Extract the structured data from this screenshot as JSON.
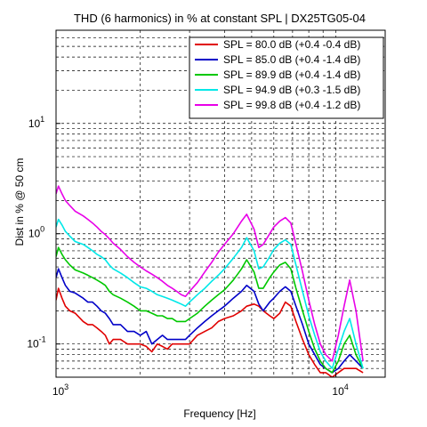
{
  "chart_data": {
    "type": "line",
    "title": "THD (6 harmonics) in % at constant SPL | DX25TG05-04",
    "xlabel": "Frequency [Hz]",
    "ylabel": "Dist in % @ 50 cm",
    "xscale": "log",
    "yscale": "log",
    "xlim": [
      1000,
      15000
    ],
    "ylim": [
      0.05,
      70
    ],
    "grid": true,
    "legend_position": "top-right",
    "x_ticks": [
      {
        "value": 1000,
        "base": "10",
        "exp": "3"
      },
      {
        "value": 10000,
        "base": "10",
        "exp": "4"
      }
    ],
    "y_ticks": [
      {
        "value": 0.1,
        "label": "10",
        "exp": "-1"
      },
      {
        "value": 1,
        "label": "10",
        "exp": "0"
      },
      {
        "value": 10,
        "label": "10",
        "exp": "1"
      }
    ],
    "series": [
      {
        "name": "SPL = 80.0 dB (+0.4 -0.4 dB)",
        "color": "#e00000",
        "points": [
          [
            1000,
            0.25
          ],
          [
            1020,
            0.32
          ],
          [
            1050,
            0.26
          ],
          [
            1080,
            0.22
          ],
          [
            1120,
            0.2
          ],
          [
            1170,
            0.19
          ],
          [
            1250,
            0.16
          ],
          [
            1300,
            0.15
          ],
          [
            1350,
            0.15
          ],
          [
            1400,
            0.14
          ],
          [
            1450,
            0.13
          ],
          [
            1500,
            0.12
          ],
          [
            1550,
            0.1
          ],
          [
            1600,
            0.11
          ],
          [
            1700,
            0.11
          ],
          [
            1800,
            0.1
          ],
          [
            1900,
            0.1
          ],
          [
            2000,
            0.1
          ],
          [
            2100,
            0.095
          ],
          [
            2200,
            0.085
          ],
          [
            2300,
            0.1
          ],
          [
            2400,
            0.095
          ],
          [
            2500,
            0.09
          ],
          [
            2600,
            0.1
          ],
          [
            2700,
            0.1
          ],
          [
            2800,
            0.1
          ],
          [
            2900,
            0.1
          ],
          [
            3000,
            0.1
          ],
          [
            3200,
            0.12
          ],
          [
            3400,
            0.13
          ],
          [
            3600,
            0.14
          ],
          [
            3800,
            0.16
          ],
          [
            4000,
            0.17
          ],
          [
            4300,
            0.18
          ],
          [
            4600,
            0.2
          ],
          [
            4800,
            0.22
          ],
          [
            5100,
            0.23
          ],
          [
            5300,
            0.22
          ],
          [
            5500,
            0.2
          ],
          [
            5800,
            0.18
          ],
          [
            6000,
            0.17
          ],
          [
            6300,
            0.19
          ],
          [
            6600,
            0.24
          ],
          [
            6900,
            0.22
          ],
          [
            7200,
            0.16
          ],
          [
            7600,
            0.11
          ],
          [
            8000,
            0.08
          ],
          [
            8400,
            0.065
          ],
          [
            8800,
            0.055
          ],
          [
            9200,
            0.055
          ],
          [
            9700,
            0.05
          ],
          [
            10200,
            0.055
          ],
          [
            10700,
            0.06
          ],
          [
            11200,
            0.06
          ],
          [
            11800,
            0.06
          ],
          [
            12500,
            0.055
          ]
        ]
      },
      {
        "name": "SPL = 85.0 dB (+0.4 -1.4 dB)",
        "color": "#0000c8",
        "points": [
          [
            1000,
            0.4
          ],
          [
            1020,
            0.48
          ],
          [
            1050,
            0.4
          ],
          [
            1080,
            0.34
          ],
          [
            1120,
            0.3
          ],
          [
            1170,
            0.29
          ],
          [
            1250,
            0.26
          ],
          [
            1300,
            0.24
          ],
          [
            1350,
            0.24
          ],
          [
            1400,
            0.22
          ],
          [
            1450,
            0.2
          ],
          [
            1500,
            0.19
          ],
          [
            1550,
            0.17
          ],
          [
            1600,
            0.15
          ],
          [
            1700,
            0.15
          ],
          [
            1800,
            0.13
          ],
          [
            1900,
            0.13
          ],
          [
            2000,
            0.12
          ],
          [
            2100,
            0.13
          ],
          [
            2200,
            0.1
          ],
          [
            2300,
            0.11
          ],
          [
            2400,
            0.12
          ],
          [
            2500,
            0.11
          ],
          [
            2600,
            0.11
          ],
          [
            2700,
            0.11
          ],
          [
            2800,
            0.11
          ],
          [
            2900,
            0.11
          ],
          [
            3000,
            0.12
          ],
          [
            3200,
            0.14
          ],
          [
            3400,
            0.16
          ],
          [
            3600,
            0.18
          ],
          [
            3800,
            0.2
          ],
          [
            4000,
            0.22
          ],
          [
            4300,
            0.26
          ],
          [
            4600,
            0.3
          ],
          [
            4800,
            0.34
          ],
          [
            5100,
            0.3
          ],
          [
            5300,
            0.23
          ],
          [
            5500,
            0.2
          ],
          [
            5800,
            0.24
          ],
          [
            6000,
            0.26
          ],
          [
            6300,
            0.3
          ],
          [
            6600,
            0.33
          ],
          [
            6900,
            0.3
          ],
          [
            7200,
            0.22
          ],
          [
            7600,
            0.15
          ],
          [
            8000,
            0.1
          ],
          [
            8400,
            0.08
          ],
          [
            8800,
            0.065
          ],
          [
            9200,
            0.06
          ],
          [
            9700,
            0.055
          ],
          [
            10200,
            0.06
          ],
          [
            10700,
            0.07
          ],
          [
            11200,
            0.08
          ],
          [
            11800,
            0.07
          ],
          [
            12500,
            0.06
          ]
        ]
      },
      {
        "name": "SPL = 89.9 dB (+0.4 -1.4 dB)",
        "color": "#00c800",
        "points": [
          [
            1000,
            0.62
          ],
          [
            1020,
            0.75
          ],
          [
            1050,
            0.65
          ],
          [
            1080,
            0.58
          ],
          [
            1120,
            0.52
          ],
          [
            1170,
            0.47
          ],
          [
            1250,
            0.44
          ],
          [
            1300,
            0.42
          ],
          [
            1350,
            0.4
          ],
          [
            1400,
            0.38
          ],
          [
            1450,
            0.36
          ],
          [
            1500,
            0.34
          ],
          [
            1550,
            0.3
          ],
          [
            1600,
            0.28
          ],
          [
            1700,
            0.26
          ],
          [
            1800,
            0.24
          ],
          [
            1900,
            0.22
          ],
          [
            2000,
            0.2
          ],
          [
            2100,
            0.2
          ],
          [
            2200,
            0.19
          ],
          [
            2300,
            0.18
          ],
          [
            2400,
            0.18
          ],
          [
            2500,
            0.17
          ],
          [
            2600,
            0.17
          ],
          [
            2700,
            0.16
          ],
          [
            2800,
            0.16
          ],
          [
            2900,
            0.16
          ],
          [
            3000,
            0.17
          ],
          [
            3200,
            0.19
          ],
          [
            3400,
            0.22
          ],
          [
            3600,
            0.25
          ],
          [
            3800,
            0.28
          ],
          [
            4000,
            0.31
          ],
          [
            4300,
            0.38
          ],
          [
            4600,
            0.48
          ],
          [
            4800,
            0.58
          ],
          [
            5100,
            0.45
          ],
          [
            5300,
            0.32
          ],
          [
            5500,
            0.32
          ],
          [
            5800,
            0.4
          ],
          [
            6000,
            0.45
          ],
          [
            6300,
            0.52
          ],
          [
            6600,
            0.55
          ],
          [
            6900,
            0.48
          ],
          [
            7200,
            0.32
          ],
          [
            7600,
            0.2
          ],
          [
            8000,
            0.13
          ],
          [
            8400,
            0.09
          ],
          [
            8800,
            0.07
          ],
          [
            9200,
            0.06
          ],
          [
            9700,
            0.055
          ],
          [
            10200,
            0.07
          ],
          [
            10700,
            0.1
          ],
          [
            11200,
            0.12
          ],
          [
            11800,
            0.08
          ],
          [
            12500,
            0.06
          ]
        ]
      },
      {
        "name": "SPL = 94.9 dB (+0.3 -1.5 dB)",
        "color": "#00e8e8",
        "points": [
          [
            1000,
            1.15
          ],
          [
            1020,
            1.35
          ],
          [
            1050,
            1.2
          ],
          [
            1080,
            1.05
          ],
          [
            1120,
            0.95
          ],
          [
            1170,
            0.85
          ],
          [
            1250,
            0.8
          ],
          [
            1300,
            0.75
          ],
          [
            1350,
            0.7
          ],
          [
            1400,
            0.65
          ],
          [
            1450,
            0.62
          ],
          [
            1500,
            0.58
          ],
          [
            1550,
            0.52
          ],
          [
            1600,
            0.48
          ],
          [
            1700,
            0.44
          ],
          [
            1800,
            0.4
          ],
          [
            1900,
            0.36
          ],
          [
            2000,
            0.33
          ],
          [
            2100,
            0.32
          ],
          [
            2200,
            0.3
          ],
          [
            2300,
            0.28
          ],
          [
            2400,
            0.27
          ],
          [
            2500,
            0.26
          ],
          [
            2600,
            0.25
          ],
          [
            2700,
            0.24
          ],
          [
            2800,
            0.23
          ],
          [
            2900,
            0.22
          ],
          [
            3000,
            0.24
          ],
          [
            3200,
            0.28
          ],
          [
            3400,
            0.32
          ],
          [
            3600,
            0.37
          ],
          [
            3800,
            0.42
          ],
          [
            4000,
            0.48
          ],
          [
            4300,
            0.6
          ],
          [
            4600,
            0.75
          ],
          [
            4800,
            0.92
          ],
          [
            5100,
            0.7
          ],
          [
            5300,
            0.48
          ],
          [
            5500,
            0.5
          ],
          [
            5800,
            0.62
          ],
          [
            6000,
            0.72
          ],
          [
            6300,
            0.82
          ],
          [
            6600,
            0.88
          ],
          [
            6900,
            0.8
          ],
          [
            7200,
            0.52
          ],
          [
            7600,
            0.3
          ],
          [
            8000,
            0.18
          ],
          [
            8400,
            0.12
          ],
          [
            8800,
            0.085
          ],
          [
            9200,
            0.07
          ],
          [
            9700,
            0.06
          ],
          [
            10200,
            0.09
          ],
          [
            10700,
            0.13
          ],
          [
            11200,
            0.17
          ],
          [
            11800,
            0.1
          ],
          [
            12500,
            0.06
          ]
        ]
      },
      {
        "name": "SPL = 99.8 dB (+0.4 -1.2 dB)",
        "color": "#e800e8",
        "points": [
          [
            1000,
            2.3
          ],
          [
            1020,
            2.7
          ],
          [
            1050,
            2.3
          ],
          [
            1080,
            2.0
          ],
          [
            1120,
            1.8
          ],
          [
            1170,
            1.6
          ],
          [
            1250,
            1.45
          ],
          [
            1300,
            1.35
          ],
          [
            1350,
            1.25
          ],
          [
            1400,
            1.15
          ],
          [
            1450,
            1.05
          ],
          [
            1500,
            0.98
          ],
          [
            1550,
            0.9
          ],
          [
            1600,
            0.82
          ],
          [
            1700,
            0.72
          ],
          [
            1800,
            0.62
          ],
          [
            1900,
            0.55
          ],
          [
            2000,
            0.5
          ],
          [
            2100,
            0.46
          ],
          [
            2200,
            0.43
          ],
          [
            2300,
            0.4
          ],
          [
            2400,
            0.37
          ],
          [
            2500,
            0.34
          ],
          [
            2600,
            0.32
          ],
          [
            2700,
            0.3
          ],
          [
            2800,
            0.28
          ],
          [
            2900,
            0.27
          ],
          [
            3000,
            0.3
          ],
          [
            3200,
            0.36
          ],
          [
            3400,
            0.45
          ],
          [
            3600,
            0.55
          ],
          [
            3800,
            0.68
          ],
          [
            4000,
            0.8
          ],
          [
            4300,
            1.0
          ],
          [
            4600,
            1.3
          ],
          [
            4800,
            1.5
          ],
          [
            5100,
            1.1
          ],
          [
            5300,
            0.75
          ],
          [
            5500,
            0.8
          ],
          [
            5800,
            1.0
          ],
          [
            6000,
            1.15
          ],
          [
            6300,
            1.3
          ],
          [
            6600,
            1.4
          ],
          [
            6900,
            1.25
          ],
          [
            7200,
            0.8
          ],
          [
            7600,
            0.45
          ],
          [
            8000,
            0.25
          ],
          [
            8400,
            0.15
          ],
          [
            8800,
            0.1
          ],
          [
            9200,
            0.08
          ],
          [
            9700,
            0.07
          ],
          [
            10200,
            0.12
          ],
          [
            10700,
            0.22
          ],
          [
            11200,
            0.38
          ],
          [
            11800,
            0.2
          ],
          [
            12500,
            0.07
          ]
        ]
      }
    ]
  }
}
